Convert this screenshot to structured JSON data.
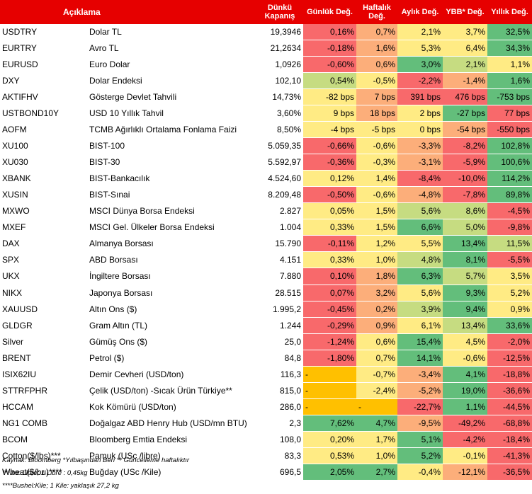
{
  "headers": {
    "code": "",
    "description": "Açıklama",
    "close": "Dünkü Kapanış",
    "daily": "Günlük Değ.",
    "weekly": "Haftalık Değ.",
    "monthly": "Aylık Değ.",
    "ytd": "YBB* Değ.",
    "yearly": "Yıllık Değ."
  },
  "colors": {
    "header_red": "#e60000",
    "red": "#f8696b",
    "orange": "#fcae7a",
    "yellow": "#ffeb84",
    "light_green": "#c6dc81",
    "green": "#63be7b",
    "gold": "#ffc000"
  },
  "rows": [
    {
      "code": "USDTRY",
      "desc": "Dolar TL",
      "close": "19,3946",
      "d": "0,16%",
      "w": "0,7%",
      "m": "2,1%",
      "ytd": "3,7%",
      "y": "32,5%",
      "cd": "red",
      "cw": "orange",
      "cm": "yellow",
      "cytd": "yellow",
      "cy": "green"
    },
    {
      "code": "EURTRY",
      "desc": "Avro TL",
      "close": "21,2634",
      "d": "-0,18%",
      "w": "1,6%",
      "m": "5,3%",
      "ytd": "6,4%",
      "y": "34,3%",
      "cd": "red",
      "cw": "orange",
      "cm": "yellow",
      "cytd": "yellow",
      "cy": "green"
    },
    {
      "code": "EURUSD",
      "desc": "Euro Dolar",
      "close": "1,0926",
      "d": "-0,60%",
      "w": "0,6%",
      "m": "3,0%",
      "ytd": "2,1%",
      "y": "1,1%",
      "cd": "red",
      "cw": "orange",
      "cm": "green",
      "cytd": "light_green",
      "cy": "yellow"
    },
    {
      "code": "DXY",
      "desc": "Dolar Endeksi",
      "close": "102,10",
      "d": "0,54%",
      "w": "-0,5%",
      "m": "-2,2%",
      "ytd": "-1,4%",
      "y": "1,6%",
      "cd": "light_green",
      "cw": "yellow",
      "cm": "red",
      "cytd": "orange",
      "cy": "green"
    },
    {
      "code": "AKTIFHV",
      "desc": "Gösterge Devlet Tahvili",
      "close": "14,73%",
      "d": "-82 bps",
      "w": "7 bps",
      "m": "391 bps",
      "ytd": "476 bps",
      "y": "-753 bps",
      "cd": "yellow",
      "cw": "orange",
      "cm": "red",
      "cytd": "red",
      "cy": "green"
    },
    {
      "code": "USTBOND10Y",
      "desc": "USD 10 Yıllık Tahvil",
      "close": "3,60%",
      "d": "9 bps",
      "w": "18 bps",
      "m": "2 bps",
      "ytd": "-27 bps",
      "y": "77 bps",
      "cd": "yellow",
      "cw": "orange",
      "cm": "yellow",
      "cytd": "green",
      "cy": "red"
    },
    {
      "code": "AOFM",
      "desc": "TCMB Ağırlıklı Ortalama Fonlama Faizi",
      "close": "8,50%",
      "d": "-4 bps",
      "w": "-5 bps",
      "m": "0 bps",
      "ytd": "-54 bps",
      "y": "-550 bps",
      "cd": "yellow",
      "cw": "yellow",
      "cm": "yellow",
      "cytd": "orange",
      "cy": "red"
    },
    {
      "code": "XU100",
      "desc": "BIST-100",
      "close": "5.059,35",
      "d": "-0,66%",
      "w": "-0,6%",
      "m": "-3,3%",
      "ytd": "-8,2%",
      "y": "102,8%",
      "cd": "red",
      "cw": "yellow",
      "cm": "orange",
      "cytd": "red",
      "cy": "green"
    },
    {
      "code": "XU030",
      "desc": "BIST-30",
      "close": "5.592,97",
      "d": "-0,36%",
      "w": "-0,3%",
      "m": "-3,1%",
      "ytd": "-5,9%",
      "y": "100,6%",
      "cd": "red",
      "cw": "yellow",
      "cm": "orange",
      "cytd": "red",
      "cy": "green"
    },
    {
      "code": "XBANK",
      "desc": "BIST-Bankacılık",
      "close": "4.524,60",
      "d": "0,12%",
      "w": "1,4%",
      "m": "-8,4%",
      "ytd": "-10,0%",
      "y": "114,2%",
      "cd": "yellow",
      "cw": "yellow",
      "cm": "red",
      "cytd": "red",
      "cy": "green"
    },
    {
      "code": "XUSIN",
      "desc": "BIST-Sınai",
      "close": "8.209,48",
      "d": "-0,50%",
      "w": "-0,6%",
      "m": "-4,8%",
      "ytd": "-7,8%",
      "y": "89,8%",
      "cd": "red",
      "cw": "yellow",
      "cm": "orange",
      "cytd": "red",
      "cy": "green"
    },
    {
      "code": "MXWO",
      "desc": "MSCI Dünya Borsa Endeksi",
      "close": "2.827",
      "d": "0,05%",
      "w": "1,5%",
      "m": "5,6%",
      "ytd": "8,6%",
      "y": "-4,5%",
      "cd": "yellow",
      "cw": "yellow",
      "cm": "light_green",
      "cytd": "light_green",
      "cy": "red"
    },
    {
      "code": "MXEF",
      "desc": "MSCI Gel. Ülkeler Borsa Endeksi",
      "close": "1.004",
      "d": "0,33%",
      "w": "1,5%",
      "m": "6,6%",
      "ytd": "5,0%",
      "y": "-9,8%",
      "cd": "yellow",
      "cw": "yellow",
      "cm": "green",
      "cytd": "light_green",
      "cy": "red"
    },
    {
      "code": "DAX",
      "desc": "Almanya Borsası",
      "close": "15.790",
      "d": "-0,11%",
      "w": "1,2%",
      "m": "5,5%",
      "ytd": "13,4%",
      "y": "11,5%",
      "cd": "red",
      "cw": "yellow",
      "cm": "yellow",
      "cytd": "green",
      "cy": "light_green"
    },
    {
      "code": "SPX",
      "desc": "ABD Borsası",
      "close": "4.151",
      "d": "0,33%",
      "w": "1,0%",
      "m": "4,8%",
      "ytd": "8,1%",
      "y": "-5,5%",
      "cd": "yellow",
      "cw": "yellow",
      "cm": "light_green",
      "cytd": "green",
      "cy": "red"
    },
    {
      "code": "UKX",
      "desc": "İngiltere Borsası",
      "close": "7.880",
      "d": "0,10%",
      "w": "1,8%",
      "m": "6,3%",
      "ytd": "5,7%",
      "y": "3,5%",
      "cd": "red",
      "cw": "orange",
      "cm": "green",
      "cytd": "light_green",
      "cy": "yellow"
    },
    {
      "code": "NIKX",
      "desc": "Japonya Borsası",
      "close": "28.515",
      "d": "0,07%",
      "w": "3,2%",
      "m": "5,6%",
      "ytd": "9,3%",
      "y": "5,2%",
      "cd": "red",
      "cw": "orange",
      "cm": "yellow",
      "cytd": "green",
      "cy": "yellow"
    },
    {
      "code": "XAUUSD",
      "desc": "Altın Ons ($)",
      "close": "1.995,2",
      "d": "-0,45%",
      "w": "0,2%",
      "m": "3,9%",
      "ytd": "9,4%",
      "y": "0,9%",
      "cd": "red",
      "cw": "orange",
      "cm": "light_green",
      "cytd": "green",
      "cy": "yellow"
    },
    {
      "code": "GLDGR",
      "desc": "Gram Altın (TL)",
      "close": "1.244",
      "d": "-0,29%",
      "w": "0,9%",
      "m": "6,1%",
      "ytd": "13,4%",
      "y": "33,6%",
      "cd": "red",
      "cw": "orange",
      "cm": "yellow",
      "cytd": "light_green",
      "cy": "green"
    },
    {
      "code": "Silver",
      "desc": "Gümüş Ons ($)",
      "close": "25,0",
      "d": "-1,24%",
      "w": "0,6%",
      "m": "15,4%",
      "ytd": "4,5%",
      "y": "-2,0%",
      "cd": "red",
      "cw": "yellow",
      "cm": "green",
      "cytd": "yellow",
      "cy": "red"
    },
    {
      "code": "BRENT",
      "desc": "Petrol ($)",
      "close": "84,8",
      "d": "-1,80%",
      "w": "0,7%",
      "m": "14,1%",
      "ytd": "-0,6%",
      "y": "-12,5%",
      "cd": "red",
      "cw": "yellow",
      "cm": "green",
      "cytd": "yellow",
      "cy": "red"
    },
    {
      "code": "ISIX62IU",
      "desc": "Demir Cevheri (USD/ton)",
      "close": "116,3",
      "d": "-",
      "w": "-0,7%",
      "m": "-3,4%",
      "ytd": "4,1%",
      "y": "-18,8%",
      "cd": "gold",
      "cw": "yellow",
      "cm": "orange",
      "cytd": "green",
      "cy": "red"
    },
    {
      "code": "STTRFPHR",
      "desc": "Çelik (USD/ton) -Sıcak Ürün Türkiye**",
      "close": "815,0",
      "d": "-",
      "w": "-2,4%",
      "m": "-5,2%",
      "ytd": "19,0%",
      "y": "-36,6%",
      "cd": "gold",
      "cw": "yellow",
      "cm": "orange",
      "cytd": "green",
      "cy": "red"
    },
    {
      "code": "HCCAM",
      "desc": "Kok Kömürü (USD/ton)",
      "close": "286,0",
      "d": "-",
      "w": "-",
      "m": "-22,7%",
      "ytd": "1,1%",
      "y": "-44,5%",
      "cd": "gold",
      "cw": "gold",
      "cm": "red",
      "cytd": "green",
      "cy": "red"
    },
    {
      "code": "NG1 COMB",
      "desc": "Doğalgaz ABD Henry Hub (USD/mn BTU)",
      "close": "2,3",
      "d": "7,62%",
      "w": "4,7%",
      "m": "-9,5%",
      "ytd": "-49,2%",
      "y": "-68,8%",
      "cd": "green",
      "cw": "green",
      "cm": "orange",
      "cytd": "red",
      "cy": "red"
    },
    {
      "code": "BCOM",
      "desc": "Bloomberg Emtia Endeksi",
      "close": "108,0",
      "d": "0,20%",
      "w": "1,7%",
      "m": "5,1%",
      "ytd": "-4,2%",
      "y": "-18,4%",
      "cd": "yellow",
      "cw": "yellow",
      "cm": "green",
      "cytd": "red",
      "cy": "red"
    },
    {
      "code": "Cotton($/lbs)***",
      "desc": "Pamuk (USc /libre)",
      "close": "83,3",
      "d": "0,53%",
      "w": "1,0%",
      "m": "5,2%",
      "ytd": "-0,1%",
      "y": "-41,3%",
      "cd": "yellow",
      "cw": "yellow",
      "cm": "green",
      "cytd": "yellow",
      "cy": "red"
    },
    {
      "code": "Wheat($/bu)****",
      "desc": "Buğday (USc /Kile)",
      "close": "696,5",
      "d": "2,05%",
      "w": "2,7%",
      "m": "-0,4%",
      "ytd": "-12,1%",
      "y": "-36,5%",
      "cd": "green",
      "cw": "green",
      "cm": "yellow",
      "cytd": "orange",
      "cy": "red"
    }
  ],
  "notes": [
    "Kaynak: Bloomberg *Yılbaşından Beri  ** Güncelleme haftalıktır",
    "***lbs: Libre; 1 Libre : 0,45kg",
    "****Bushel:Kile; 1 Kile: yaklaşık 27,2 kg"
  ]
}
